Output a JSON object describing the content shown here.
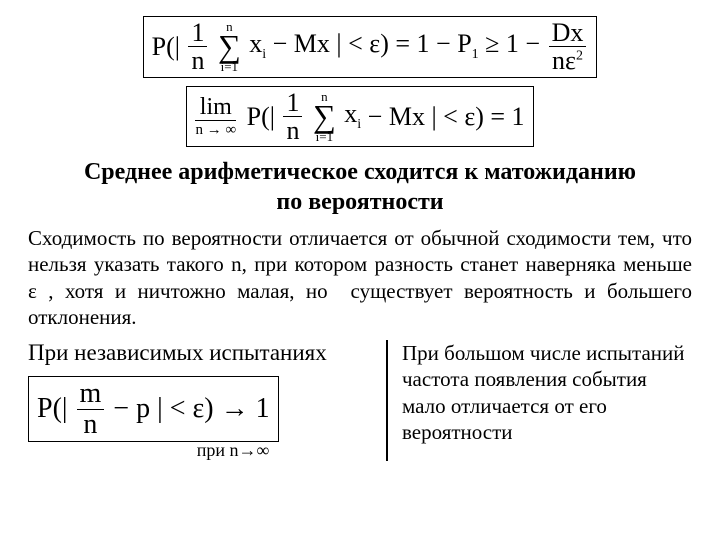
{
  "formula1": {
    "open": "P(|",
    "frac1_num": "1",
    "frac1_den": "n",
    "sum_top": "n",
    "sum_bot": "i=1",
    "sum_sym": "∑",
    "xi": "x",
    "xi_sub": "i",
    "minus": " − Mx | < ε) = 1 − P",
    "p1_sub": "1",
    "geq": " ≥ 1 − ",
    "frac2_num": "Dx",
    "frac2_den_left": "nε",
    "frac2_den_exp": "2"
  },
  "formula2": {
    "lim": "lim",
    "lim_under": "n → ∞",
    "open": "P(|",
    "frac_num": "1",
    "frac_den": "n",
    "sum_top": "n",
    "sum_bot": "i=1",
    "sum_sym": "∑",
    "xi": "x",
    "xi_sub": "i",
    "rest": " − Mx | < ε) = 1"
  },
  "heading_line1": "Среднее арифметическое сходится к матожиданию",
  "heading_line2": "по вероятности",
  "paragraph": "Сходимость по вероятности отличается от обычной сходимости тем, что нельзя указать такого n, при котором разность станет наверняка меньше ε , хотя и ничтожно малая, но  существует вероятность и большего отклонения.",
  "independent_heading": "При независимых испытаниях",
  "formula3": {
    "open": "P(|",
    "frac_num": "m",
    "frac_den": "n",
    "rest": " − p | < ε) → 1"
  },
  "note": "при  n→∞",
  "right_text": "При большом числе испытаний частота появления события мало отличается от его вероятности",
  "colors": {
    "text": "#000000",
    "bg": "#ffffff",
    "border": "#000000"
  }
}
